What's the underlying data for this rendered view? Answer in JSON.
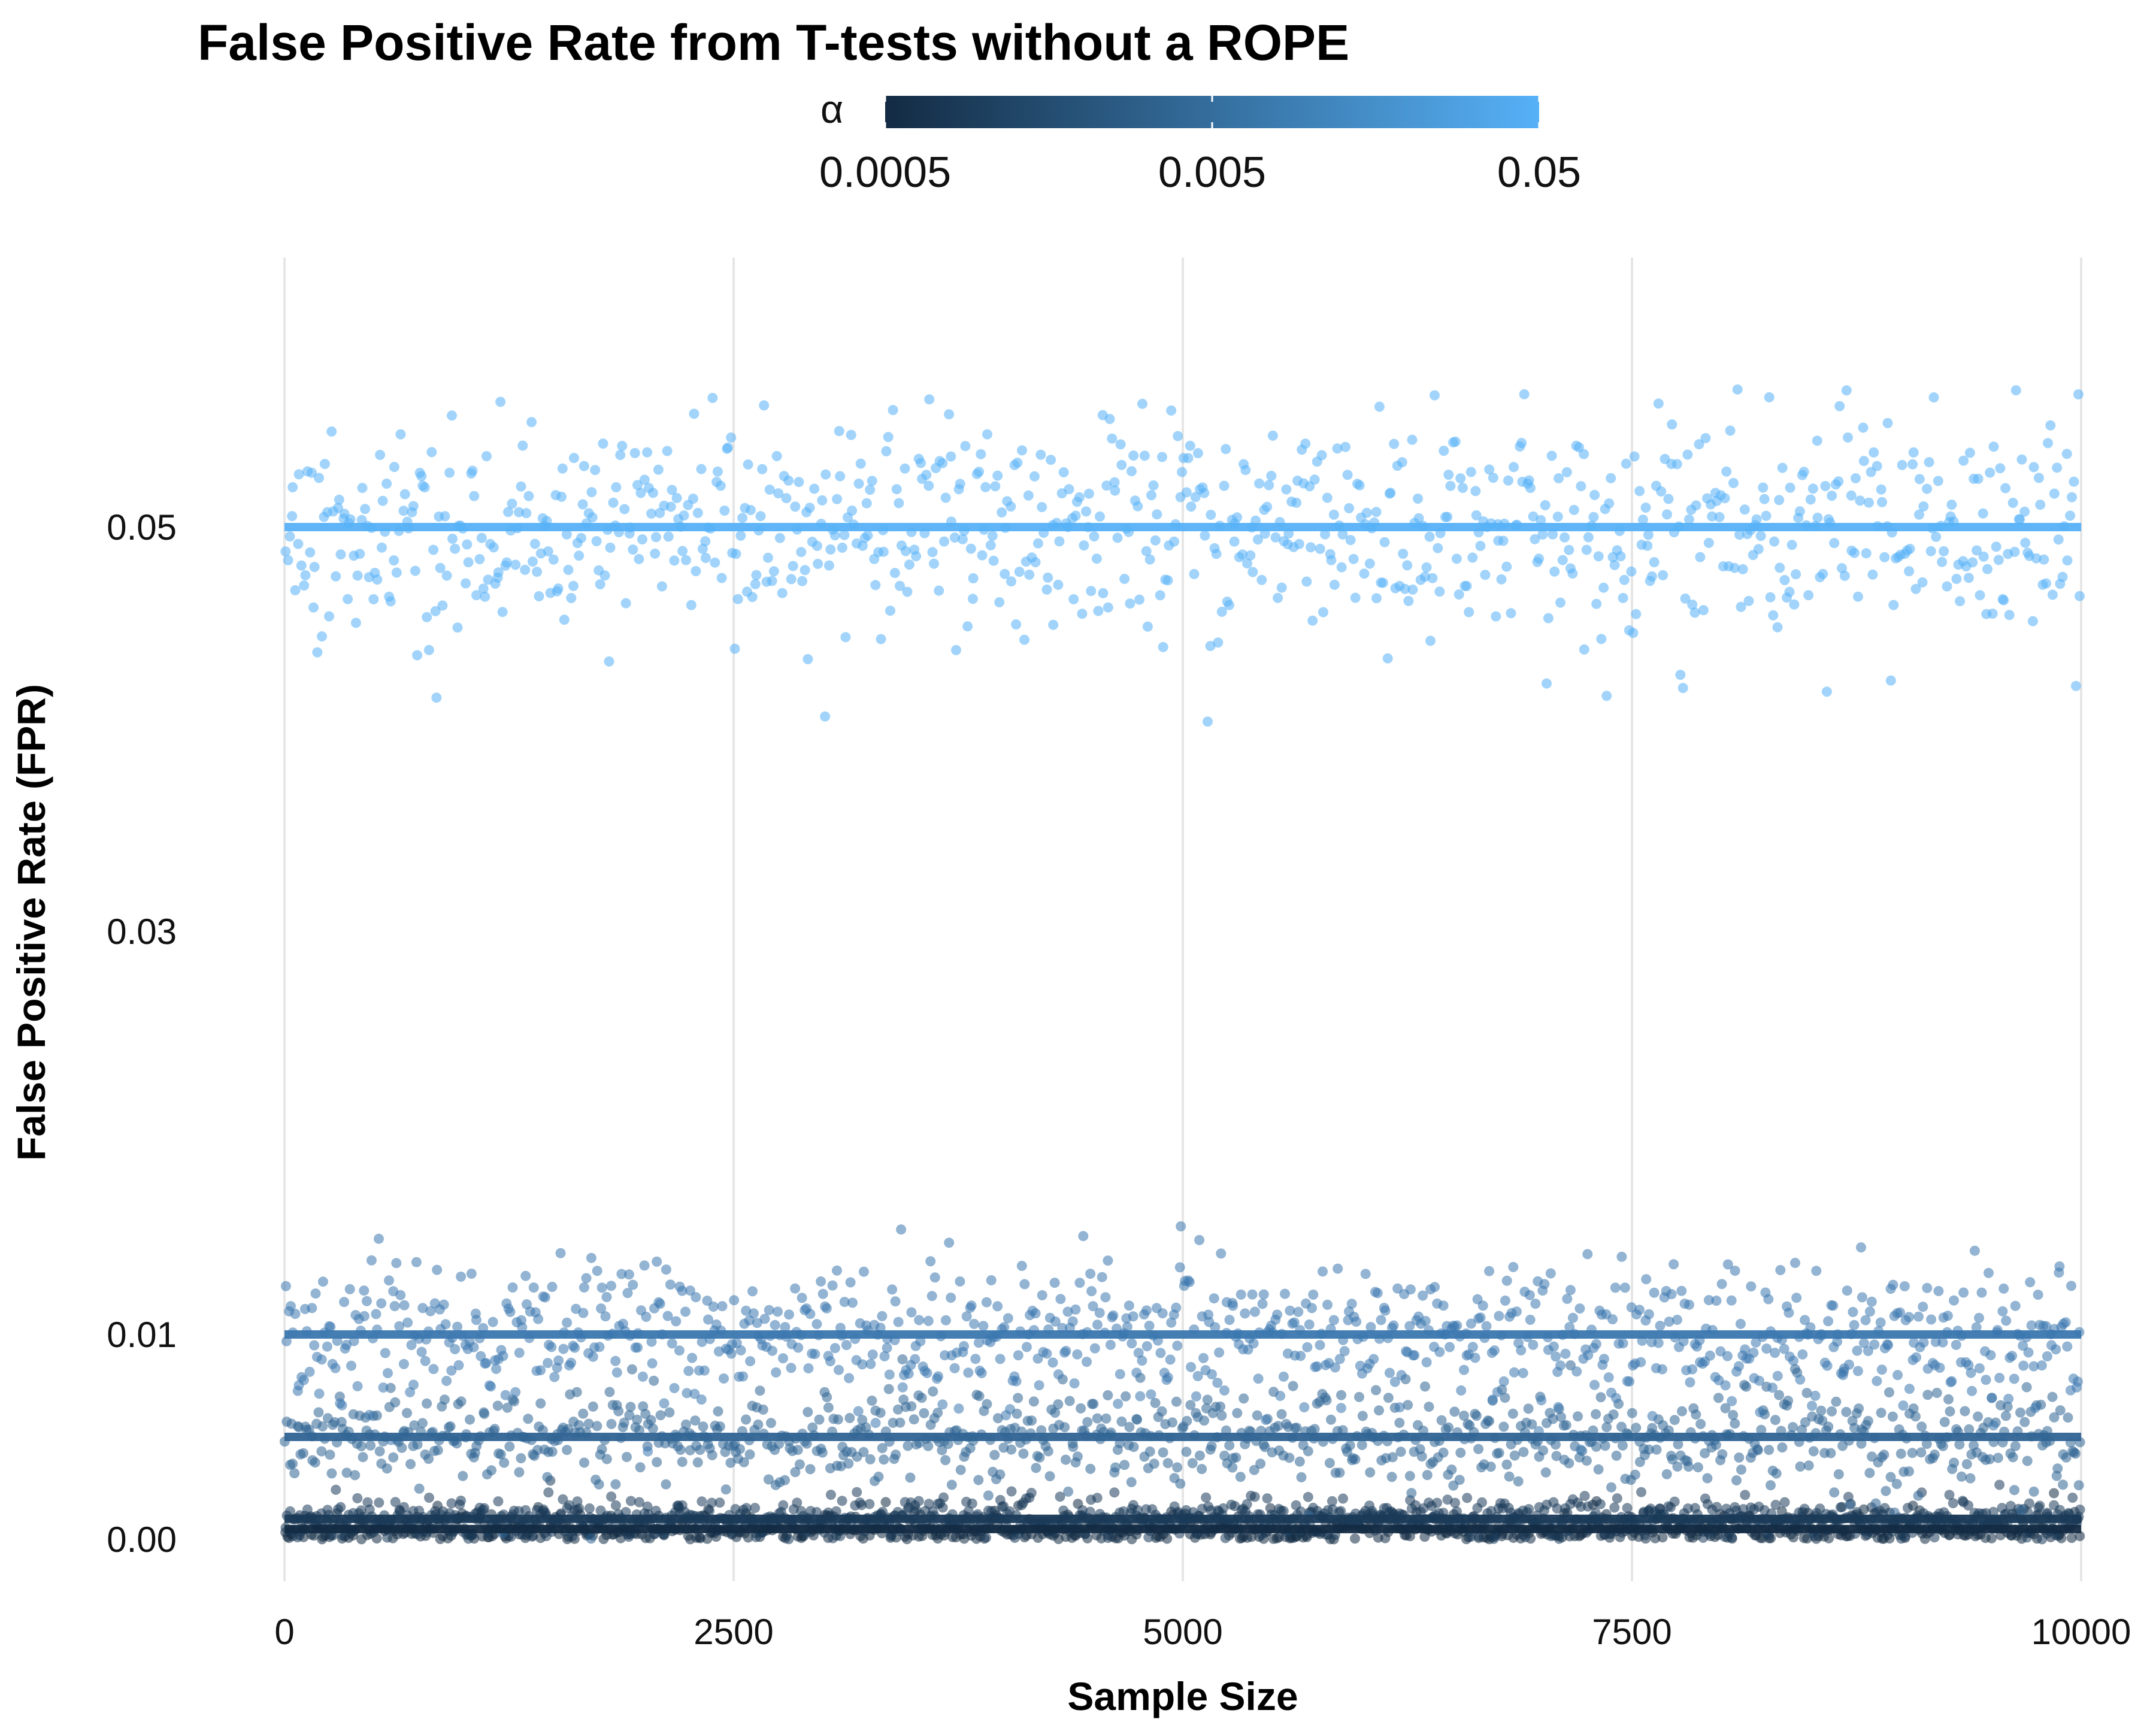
{
  "chart_data": {
    "type": "scatter",
    "title": "False Positive Rate from T-tests without a ROPE",
    "xlabel": "Sample Size",
    "ylabel": "False Positive Rate (FPR)",
    "xlim": [
      0,
      10000
    ],
    "ylim": [
      -0.0015,
      0.0605
    ],
    "x_ticks": [
      {
        "value": 0,
        "label": "0"
      },
      {
        "value": 2500,
        "label": "2500"
      },
      {
        "value": 5000,
        "label": "5000"
      },
      {
        "value": 7500,
        "label": "7500"
      },
      {
        "value": 10000,
        "label": "10000"
      }
    ],
    "y_ticks": [
      {
        "value": 0.0,
        "label": "0.00"
      },
      {
        "value": 0.01,
        "label": "0.01"
      },
      {
        "value": 0.03,
        "label": "0.03"
      },
      {
        "value": 0.05,
        "label": "0.05"
      }
    ],
    "grid": "vertical major gridlines only",
    "legend": {
      "title": "α",
      "type": "colorbar",
      "position": "top",
      "scale": "log",
      "range": [
        0.0005,
        0.05
      ],
      "low_color": "#132B43",
      "high_color": "#56B1F7",
      "breaks": [
        {
          "value": 0.0005,
          "label": "0.0005"
        },
        {
          "value": 0.005,
          "label": "0.005"
        },
        {
          "value": 0.05,
          "label": "0.05"
        }
      ]
    },
    "series": [
      {
        "alpha": 0.0005,
        "color": "#132B43",
        "reference_fpr": 0.0005,
        "x_range": [
          0,
          10000
        ],
        "point_count": 900,
        "fpr_spread_sd": 0.00045
      },
      {
        "alpha": 0.001,
        "color": "#1A3A59",
        "reference_fpr": 0.001,
        "x_range": [
          0,
          10000
        ],
        "point_count": 900,
        "fpr_spread_sd": 0.0005
      },
      {
        "alpha": 0.005,
        "color": "#306494",
        "reference_fpr": 0.005,
        "x_range": [
          0,
          10000
        ],
        "point_count": 900,
        "fpr_spread_sd": 0.0012
      },
      {
        "alpha": 0.01,
        "color": "#3A77AF",
        "reference_fpr": 0.01,
        "x_range": [
          0,
          10000
        ],
        "point_count": 900,
        "fpr_spread_sd": 0.0017
      },
      {
        "alpha": 0.05,
        "color": "#56B1F7",
        "reference_fpr": 0.05,
        "x_range": [
          0,
          10000
        ],
        "point_count": 900,
        "fpr_spread_sd": 0.0028
      }
    ]
  }
}
